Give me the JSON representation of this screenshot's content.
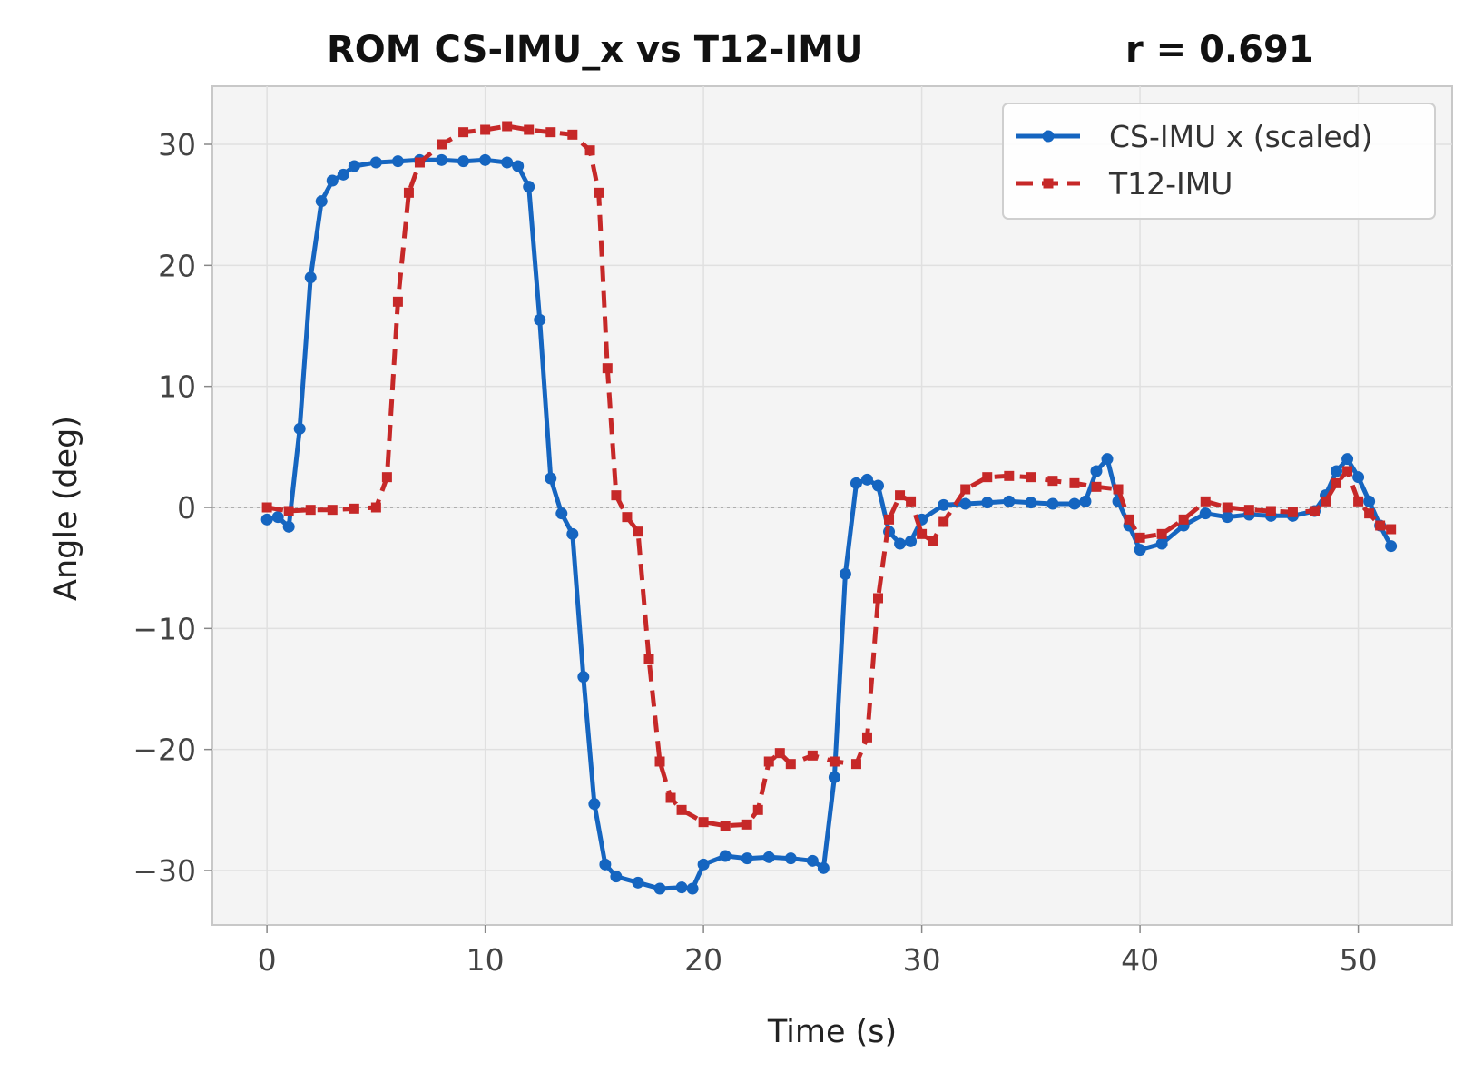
{
  "chart_data": {
    "type": "line",
    "title": "ROM  CS-IMU_x vs T12-IMU",
    "subtitle": "r = 0.691",
    "xlabel": "Time (s)",
    "ylabel": "Angle (deg)",
    "xlim": [
      -2.5,
      54.3
    ],
    "ylim": [
      -34.5,
      34.8
    ],
    "xticks": [
      0,
      10,
      20,
      30,
      40,
      50
    ],
    "yticks": [
      -30,
      -20,
      -10,
      0,
      10,
      20,
      30
    ],
    "xtick_labels": [
      "0",
      "10",
      "20",
      "30",
      "40",
      "50"
    ],
    "ytick_labels": [
      "−30",
      "−20",
      "−10",
      "0",
      "10",
      "20",
      "30"
    ],
    "grid": true,
    "zero_line": true,
    "legend_position": "top-right",
    "series": [
      {
        "name": "CS-IMU x (scaled)",
        "color": "#1565c0",
        "style": "solid",
        "marker": "circle",
        "points": [
          [
            0,
            -1
          ],
          [
            0.5,
            -0.8
          ],
          [
            1,
            -1.6
          ],
          [
            1.5,
            6.5
          ],
          [
            2,
            19
          ],
          [
            2.5,
            25.3
          ],
          [
            3,
            27
          ],
          [
            3.5,
            27.5
          ],
          [
            4,
            28.2
          ],
          [
            5,
            28.5
          ],
          [
            6,
            28.6
          ],
          [
            7,
            28.7
          ],
          [
            8,
            28.7
          ],
          [
            9,
            28.6
          ],
          [
            10,
            28.7
          ],
          [
            11,
            28.5
          ],
          [
            11.5,
            28.2
          ],
          [
            12,
            26.5
          ],
          [
            12.5,
            15.5
          ],
          [
            13,
            2.4
          ],
          [
            13.5,
            -0.5
          ],
          [
            14,
            -2.2
          ],
          [
            14.5,
            -14
          ],
          [
            15,
            -24.5
          ],
          [
            15.5,
            -29.5
          ],
          [
            16,
            -30.5
          ],
          [
            17,
            -31
          ],
          [
            18,
            -31.5
          ],
          [
            19,
            -31.4
          ],
          [
            19.5,
            -31.5
          ],
          [
            20,
            -29.5
          ],
          [
            21,
            -28.8
          ],
          [
            22,
            -29
          ],
          [
            23,
            -28.9
          ],
          [
            24,
            -29
          ],
          [
            25,
            -29.2
          ],
          [
            25.5,
            -29.8
          ],
          [
            26,
            -22.3
          ],
          [
            26.5,
            -5.5
          ],
          [
            27,
            2
          ],
          [
            27.5,
            2.3
          ],
          [
            28,
            1.8
          ],
          [
            28.5,
            -2
          ],
          [
            29,
            -3
          ],
          [
            29.5,
            -2.8
          ],
          [
            30,
            -1
          ],
          [
            31,
            0.2
          ],
          [
            32,
            0.3
          ],
          [
            33,
            0.4
          ],
          [
            34,
            0.5
          ],
          [
            35,
            0.4
          ],
          [
            36,
            0.3
          ],
          [
            37,
            0.3
          ],
          [
            37.5,
            0.5
          ],
          [
            38,
            3
          ],
          [
            38.5,
            4
          ],
          [
            39,
            0.5
          ],
          [
            39.5,
            -1.5
          ],
          [
            40,
            -3.5
          ],
          [
            41,
            -3
          ],
          [
            42,
            -1.5
          ],
          [
            43,
            -0.5
          ],
          [
            44,
            -0.8
          ],
          [
            45,
            -0.6
          ],
          [
            46,
            -0.7
          ],
          [
            47,
            -0.7
          ],
          [
            48,
            -0.3
          ],
          [
            48.5,
            1
          ],
          [
            49,
            3
          ],
          [
            49.5,
            4
          ],
          [
            50,
            2.5
          ],
          [
            50.5,
            0.5
          ],
          [
            51,
            -1.5
          ],
          [
            51.5,
            -3.2
          ]
        ]
      },
      {
        "name": "T12-IMU",
        "color": "#c62828",
        "style": "dashed",
        "marker": "square",
        "points": [
          [
            0,
            0
          ],
          [
            1,
            -0.3
          ],
          [
            2,
            -0.2
          ],
          [
            3,
            -0.2
          ],
          [
            4,
            -0.1
          ],
          [
            5,
            0
          ],
          [
            5.5,
            2.5
          ],
          [
            6,
            17
          ],
          [
            6.5,
            26
          ],
          [
            7,
            28.5
          ],
          [
            8,
            30
          ],
          [
            9,
            31
          ],
          [
            10,
            31.2
          ],
          [
            11,
            31.5
          ],
          [
            12,
            31.2
          ],
          [
            13,
            31
          ],
          [
            14,
            30.8
          ],
          [
            14.8,
            29.5
          ],
          [
            15.2,
            26
          ],
          [
            15.6,
            11.5
          ],
          [
            16,
            1
          ],
          [
            16.5,
            -0.8
          ],
          [
            17,
            -2
          ],
          [
            17.5,
            -12.5
          ],
          [
            18,
            -21
          ],
          [
            18.5,
            -24
          ],
          [
            19,
            -25
          ],
          [
            20,
            -26
          ],
          [
            21,
            -26.3
          ],
          [
            22,
            -26.2
          ],
          [
            22.5,
            -25
          ],
          [
            23,
            -21
          ],
          [
            23.5,
            -20.3
          ],
          [
            24,
            -21.2
          ],
          [
            25,
            -20.5
          ],
          [
            26,
            -21
          ],
          [
            27,
            -21.2
          ],
          [
            27.5,
            -19
          ],
          [
            28,
            -7.5
          ],
          [
            28.5,
            -1
          ],
          [
            29,
            1
          ],
          [
            29.5,
            0.5
          ],
          [
            30,
            -2.2
          ],
          [
            30.5,
            -2.8
          ],
          [
            31,
            -1.2
          ],
          [
            32,
            1.5
          ],
          [
            33,
            2.5
          ],
          [
            34,
            2.6
          ],
          [
            35,
            2.5
          ],
          [
            36,
            2.2
          ],
          [
            37,
            2
          ],
          [
            38,
            1.7
          ],
          [
            39,
            1.5
          ],
          [
            39.5,
            -1
          ],
          [
            40,
            -2.5
          ],
          [
            41,
            -2.2
          ],
          [
            42,
            -1
          ],
          [
            43,
            0.5
          ],
          [
            44,
            0
          ],
          [
            45,
            -0.2
          ],
          [
            46,
            -0.3
          ],
          [
            47,
            -0.4
          ],
          [
            48,
            -0.3
          ],
          [
            48.5,
            0.5
          ],
          [
            49,
            2
          ],
          [
            49.5,
            3
          ],
          [
            50,
            0.5
          ],
          [
            50.5,
            -0.5
          ],
          [
            51,
            -1.5
          ],
          [
            51.5,
            -1.8
          ]
        ]
      }
    ]
  }
}
